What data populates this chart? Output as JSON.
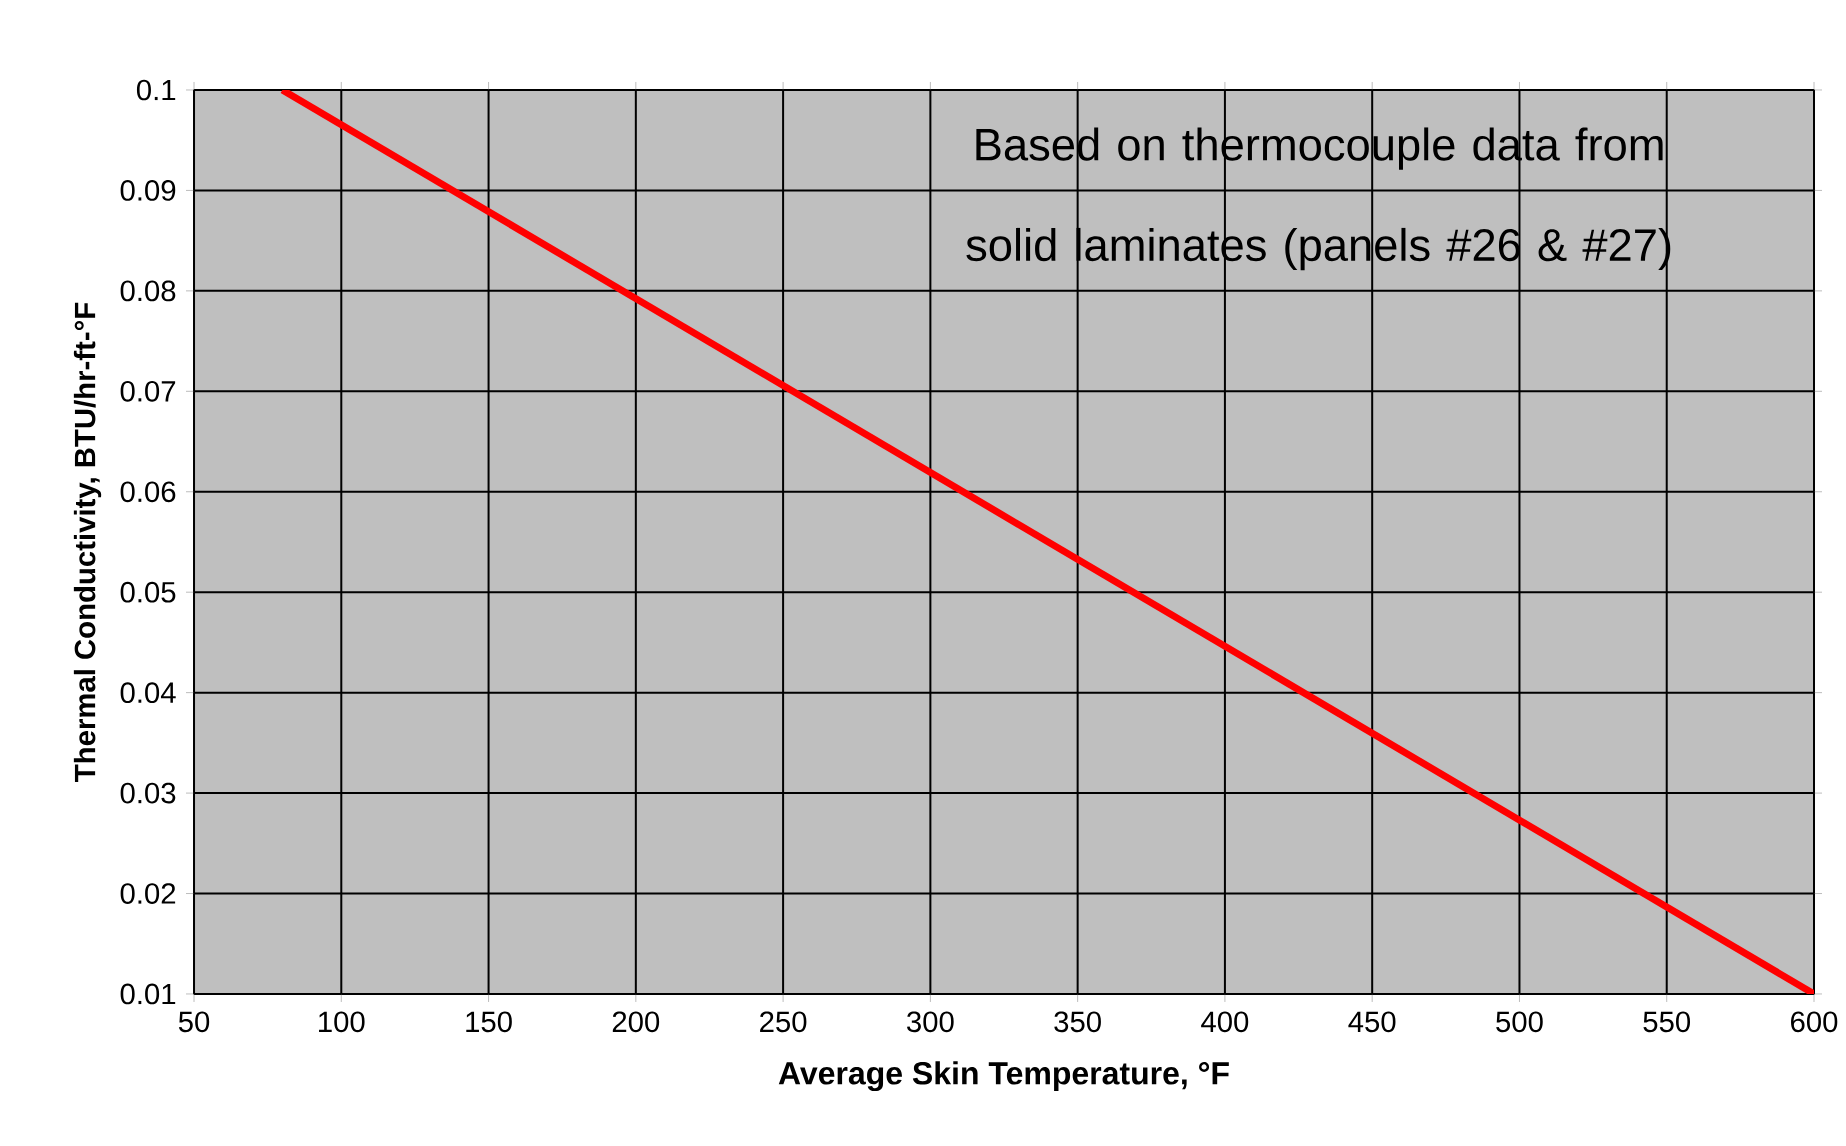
{
  "chart_data": {
    "type": "line",
    "xlabel": "Average Skin Temperature, °F",
    "ylabel": "Thermal Conductivity, BTU/hr-ft-°F",
    "annotations": [
      "Based on thermocouple data from solid laminates (panels #26 & #27)"
    ],
    "x": [
      80,
      600
    ],
    "series": [
      {
        "color": "#ff0000",
        "values": [
          0.1,
          0.01
        ]
      }
    ],
    "xlim": [
      50,
      600
    ],
    "ylim": [
      0.01,
      0.1
    ],
    "xticks": [
      50,
      100,
      150,
      200,
      250,
      300,
      350,
      400,
      450,
      500,
      550,
      600
    ],
    "yticks": [
      0.01,
      0.02,
      0.03,
      0.04,
      0.05,
      0.06,
      0.07,
      0.08,
      0.09,
      0.1
    ],
    "grid": true,
    "marker": "none",
    "line_style": "solid"
  }
}
